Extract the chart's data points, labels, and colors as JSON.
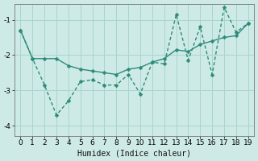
{
  "x": [
    0,
    1,
    2,
    3,
    4,
    5,
    6,
    7,
    8,
    9,
    10,
    11,
    12,
    13,
    14,
    15,
    16,
    17,
    18,
    19
  ],
  "line_smooth": [
    -1.3,
    -2.1,
    -2.1,
    -2.1,
    -2.3,
    -2.4,
    -2.45,
    -2.5,
    -2.55,
    -2.4,
    -2.35,
    -2.2,
    -2.1,
    -1.85,
    -1.9,
    -1.7,
    -1.6,
    -1.5,
    -1.45,
    -1.1
  ],
  "line_jagged": [
    -1.3,
    -2.1,
    -2.85,
    -3.7,
    -3.3,
    -2.75,
    -2.7,
    -2.85,
    -2.85,
    -2.55,
    -3.1,
    -2.2,
    -2.25,
    -0.85,
    -2.15,
    -1.2,
    -2.55,
    -0.65,
    -1.35,
    -1.1
  ],
  "line_color": "#2d8b7a",
  "bg_color": "#ceeae6",
  "grid_color": "#a8d5cf",
  "xlabel": "Humidex (Indice chaleur)",
  "ylim": [
    -4.3,
    -0.55
  ],
  "xlim": [
    -0.5,
    19.5
  ],
  "yticks": [
    -4,
    -3,
    -2,
    -1
  ],
  "xticks": [
    0,
    1,
    2,
    3,
    4,
    5,
    6,
    7,
    8,
    9,
    10,
    11,
    12,
    13,
    14,
    15,
    16,
    17,
    18,
    19
  ],
  "xlabel_fontsize": 7,
  "tick_fontsize": 6.5,
  "line_width": 1.0,
  "marker": "D",
  "marker_size": 2.5
}
